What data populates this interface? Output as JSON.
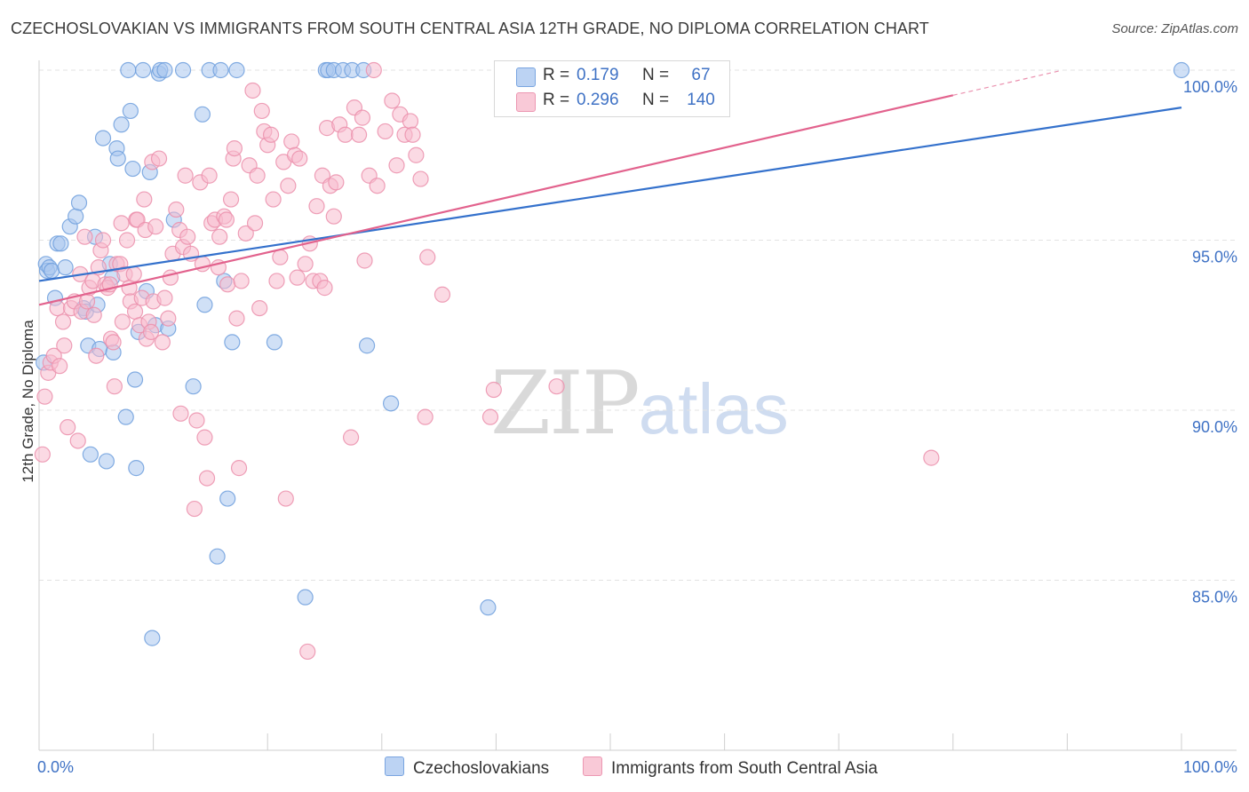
{
  "title": "CZECHOSLOVAKIAN VS IMMIGRANTS FROM SOUTH CENTRAL ASIA 12TH GRADE, NO DIPLOMA CORRELATION CHART",
  "source": "Source: ZipAtlas.com",
  "watermark": {
    "zip": "ZIP",
    "atlas": "atlas"
  },
  "legend": {
    "r_label": "R =",
    "n_label": "N =",
    "series": [
      {
        "name": "Czechoslovakians",
        "r": "0.179",
        "n": "67"
      },
      {
        "name": "Immigrants from South Central Asia",
        "r": "0.296",
        "n": "140"
      }
    ]
  },
  "colors": {
    "blue_fill": "#a9c6ef",
    "blue_stroke": "#6f9fdd",
    "blue_line": "#3471cc",
    "pink_fill": "#f7bccd",
    "pink_stroke": "#eb8fab",
    "pink_line": "#e2628d",
    "axis_text": "#3f72c5",
    "grid": "#e3e3e3"
  },
  "chart_data": {
    "type": "scatter",
    "title": "CZECHOSLOVAKIAN VS IMMIGRANTS FROM SOUTH CENTRAL ASIA 12TH GRADE, NO DIPLOMA CORRELATION CHART",
    "xlabel": "",
    "ylabel": "12th Grade, No Diploma",
    "xlim": [
      0,
      100
    ],
    "ylim": [
      80.5,
      100.5
    ],
    "x_tick_labels": [
      "0.0%",
      "100.0%"
    ],
    "y_ticks": [
      85,
      90,
      95,
      100
    ],
    "y_tick_labels": [
      "85.0%",
      "90.0%",
      "95.0%",
      "100.0%"
    ],
    "grid": true,
    "legend_position": "top-center",
    "series": [
      {
        "name": "Czechoslovakians",
        "r": 0.179,
        "n": 67,
        "trend": {
          "x": [
            0,
            100
          ],
          "y": [
            93.8,
            98.9
          ],
          "dashed_from": null
        },
        "points": [
          [
            0.4,
            91.4
          ],
          [
            0.6,
            94.3
          ],
          [
            0.7,
            94.1
          ],
          [
            0.9,
            94.2
          ],
          [
            1.1,
            94.1
          ],
          [
            1.4,
            93.3
          ],
          [
            1.6,
            94.9
          ],
          [
            1.9,
            94.9
          ],
          [
            2.3,
            94.2
          ],
          [
            2.7,
            95.4
          ],
          [
            3.2,
            95.7
          ],
          [
            3.5,
            96.1
          ],
          [
            3.9,
            93.0
          ],
          [
            4.1,
            92.9
          ],
          [
            4.3,
            91.9
          ],
          [
            4.5,
            88.7
          ],
          [
            4.9,
            95.1
          ],
          [
            5.1,
            93.1
          ],
          [
            5.3,
            91.8
          ],
          [
            5.6,
            98.0
          ],
          [
            5.9,
            88.5
          ],
          [
            6.2,
            94.3
          ],
          [
            6.4,
            93.9
          ],
          [
            6.5,
            91.7
          ],
          [
            6.8,
            97.7
          ],
          [
            6.9,
            97.4
          ],
          [
            7.2,
            98.4
          ],
          [
            7.6,
            89.8
          ],
          [
            7.8,
            100.0
          ],
          [
            8.0,
            98.8
          ],
          [
            8.2,
            97.1
          ],
          [
            8.4,
            90.9
          ],
          [
            8.5,
            88.3
          ],
          [
            8.7,
            92.3
          ],
          [
            9.1,
            100.0
          ],
          [
            9.4,
            93.5
          ],
          [
            9.7,
            97.0
          ],
          [
            9.9,
            83.3
          ],
          [
            10.2,
            92.5
          ],
          [
            10.5,
            99.9
          ],
          [
            10.6,
            100.0
          ],
          [
            11.0,
            100.0
          ],
          [
            11.3,
            92.4
          ],
          [
            11.8,
            95.6
          ],
          [
            12.6,
            100.0
          ],
          [
            13.5,
            90.7
          ],
          [
            14.3,
            98.7
          ],
          [
            14.5,
            93.1
          ],
          [
            14.9,
            100.0
          ],
          [
            15.6,
            85.7
          ],
          [
            15.9,
            100.0
          ],
          [
            16.2,
            93.8
          ],
          [
            16.5,
            87.4
          ],
          [
            16.9,
            92.0
          ],
          [
            17.3,
            100.0
          ],
          [
            20.6,
            92.0
          ],
          [
            23.3,
            84.5
          ],
          [
            25.1,
            100.0
          ],
          [
            25.3,
            100.0
          ],
          [
            25.8,
            100.0
          ],
          [
            26.6,
            100.0
          ],
          [
            27.4,
            100.0
          ],
          [
            28.4,
            100.0
          ],
          [
            28.7,
            91.9
          ],
          [
            30.8,
            90.2
          ],
          [
            39.3,
            84.2
          ],
          [
            100.0,
            100.0
          ]
        ]
      },
      {
        "name": "Immigrants from South Central Asia",
        "r": 0.296,
        "n": 140,
        "trend": {
          "x": [
            0,
            100
          ],
          "y": [
            93.1,
            100.8
          ],
          "dashed_from": 80
        },
        "points": [
          [
            0.3,
            88.7
          ],
          [
            0.5,
            90.4
          ],
          [
            0.8,
            91.1
          ],
          [
            1.0,
            91.4
          ],
          [
            1.3,
            91.6
          ],
          [
            1.6,
            93.0
          ],
          [
            1.8,
            91.3
          ],
          [
            2.1,
            92.6
          ],
          [
            2.2,
            91.9
          ],
          [
            2.5,
            89.5
          ],
          [
            2.8,
            93.0
          ],
          [
            3.1,
            93.2
          ],
          [
            3.4,
            89.1
          ],
          [
            3.6,
            94.0
          ],
          [
            3.7,
            92.9
          ],
          [
            4.0,
            95.1
          ],
          [
            4.2,
            93.2
          ],
          [
            4.4,
            93.6
          ],
          [
            4.7,
            93.8
          ],
          [
            4.8,
            92.8
          ],
          [
            5.0,
            91.6
          ],
          [
            5.2,
            94.2
          ],
          [
            5.4,
            94.7
          ],
          [
            5.6,
            95.0
          ],
          [
            5.8,
            93.7
          ],
          [
            6.0,
            93.6
          ],
          [
            6.2,
            93.7
          ],
          [
            6.3,
            92.1
          ],
          [
            6.5,
            92.0
          ],
          [
            6.6,
            90.7
          ],
          [
            6.8,
            94.3
          ],
          [
            7.1,
            94.3
          ],
          [
            7.2,
            95.5
          ],
          [
            7.3,
            92.6
          ],
          [
            7.5,
            94.0
          ],
          [
            7.7,
            95.0
          ],
          [
            7.9,
            93.6
          ],
          [
            8.0,
            93.2
          ],
          [
            8.3,
            94.0
          ],
          [
            8.4,
            92.9
          ],
          [
            8.5,
            95.6
          ],
          [
            8.6,
            95.6
          ],
          [
            8.8,
            92.5
          ],
          [
            9.0,
            93.3
          ],
          [
            9.2,
            96.2
          ],
          [
            9.3,
            95.3
          ],
          [
            9.4,
            92.1
          ],
          [
            9.6,
            92.6
          ],
          [
            9.8,
            92.3
          ],
          [
            9.9,
            97.3
          ],
          [
            10.0,
            93.2
          ],
          [
            10.2,
            95.4
          ],
          [
            10.5,
            97.4
          ],
          [
            10.8,
            92.0
          ],
          [
            11.0,
            93.3
          ],
          [
            11.3,
            92.7
          ],
          [
            11.5,
            93.9
          ],
          [
            11.7,
            94.6
          ],
          [
            12.0,
            95.9
          ],
          [
            12.3,
            95.3
          ],
          [
            12.4,
            89.9
          ],
          [
            12.6,
            94.8
          ],
          [
            12.8,
            96.9
          ],
          [
            13.0,
            95.1
          ],
          [
            13.3,
            94.6
          ],
          [
            13.6,
            87.1
          ],
          [
            13.8,
            89.7
          ],
          [
            14.1,
            96.7
          ],
          [
            14.3,
            94.3
          ],
          [
            14.5,
            89.2
          ],
          [
            14.7,
            88.0
          ],
          [
            14.9,
            96.9
          ],
          [
            15.1,
            95.5
          ],
          [
            15.4,
            95.6
          ],
          [
            15.7,
            94.2
          ],
          [
            15.8,
            95.1
          ],
          [
            16.2,
            95.7
          ],
          [
            16.4,
            95.6
          ],
          [
            16.5,
            93.7
          ],
          [
            16.8,
            96.2
          ],
          [
            17.0,
            97.4
          ],
          [
            17.1,
            97.7
          ],
          [
            17.3,
            92.7
          ],
          [
            17.5,
            88.3
          ],
          [
            17.7,
            93.8
          ],
          [
            18.1,
            95.2
          ],
          [
            18.4,
            97.2
          ],
          [
            18.7,
            99.4
          ],
          [
            18.9,
            95.5
          ],
          [
            19.1,
            96.9
          ],
          [
            19.3,
            93.0
          ],
          [
            19.5,
            98.8
          ],
          [
            19.7,
            98.2
          ],
          [
            20.0,
            97.8
          ],
          [
            20.3,
            98.1
          ],
          [
            20.5,
            96.2
          ],
          [
            20.8,
            93.8
          ],
          [
            21.1,
            94.5
          ],
          [
            21.4,
            97.3
          ],
          [
            21.6,
            87.4
          ],
          [
            21.8,
            96.6
          ],
          [
            22.1,
            97.9
          ],
          [
            22.4,
            97.5
          ],
          [
            22.6,
            93.9
          ],
          [
            22.8,
            97.4
          ],
          [
            23.3,
            94.3
          ],
          [
            23.5,
            82.9
          ],
          [
            23.7,
            94.9
          ],
          [
            24.0,
            93.8
          ],
          [
            24.3,
            96.0
          ],
          [
            24.6,
            93.8
          ],
          [
            24.8,
            96.9
          ],
          [
            25.0,
            93.6
          ],
          [
            25.2,
            98.3
          ],
          [
            25.5,
            96.6
          ],
          [
            25.8,
            95.7
          ],
          [
            26.0,
            96.7
          ],
          [
            26.3,
            98.4
          ],
          [
            26.8,
            98.1
          ],
          [
            27.3,
            89.2
          ],
          [
            27.6,
            98.9
          ],
          [
            28.0,
            98.1
          ],
          [
            28.3,
            98.6
          ],
          [
            28.5,
            94.4
          ],
          [
            28.9,
            96.9
          ],
          [
            29.3,
            100.0
          ],
          [
            29.6,
            96.6
          ],
          [
            30.3,
            98.2
          ],
          [
            30.9,
            99.1
          ],
          [
            31.3,
            97.2
          ],
          [
            31.6,
            98.7
          ],
          [
            32.0,
            98.1
          ],
          [
            32.5,
            98.5
          ],
          [
            32.7,
            98.1
          ],
          [
            33.0,
            97.5
          ],
          [
            33.4,
            96.8
          ],
          [
            33.8,
            89.8
          ],
          [
            34.0,
            94.5
          ],
          [
            35.3,
            93.4
          ],
          [
            39.5,
            89.8
          ],
          [
            39.8,
            90.6
          ],
          [
            45.3,
            90.7
          ],
          [
            78.1,
            88.6
          ]
        ]
      }
    ]
  }
}
